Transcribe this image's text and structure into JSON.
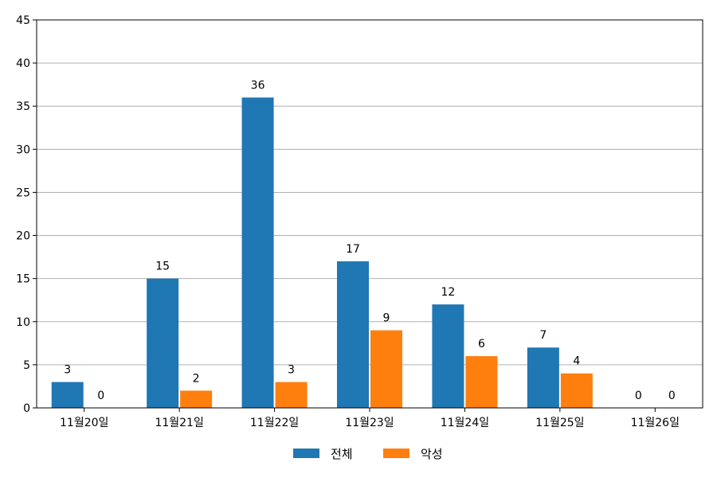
{
  "chart_data": {
    "type": "bar",
    "categories": [
      "11월20일",
      "11월21일",
      "11월22일",
      "11월23일",
      "11월24일",
      "11월25일",
      "11월26일"
    ],
    "series": [
      {
        "name": "전체",
        "values": [
          3,
          15,
          36,
          17,
          12,
          7,
          0
        ],
        "color": "#1f77b4"
      },
      {
        "name": "악성",
        "values": [
          0,
          2,
          3,
          9,
          6,
          4,
          0
        ],
        "color": "#ff7f0e"
      }
    ],
    "ylim": [
      0,
      45
    ],
    "yticks": [
      0,
      5,
      10,
      15,
      20,
      25,
      30,
      35,
      40,
      45
    ],
    "grid": "horizontal",
    "legend_position": "bottom-center",
    "show_data_labels": true
  }
}
